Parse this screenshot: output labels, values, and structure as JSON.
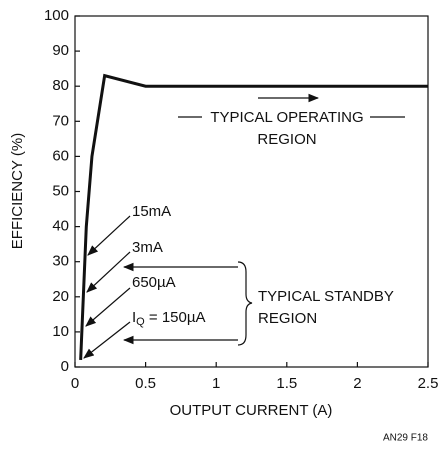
{
  "chart_data": {
    "type": "line",
    "ylabel": "EFFICIENCY (%)",
    "xlabel": "OUTPUT CURRENT (A)",
    "figure_id": "AN29 F18",
    "xlim": [
      0,
      2.5
    ],
    "xticks": [
      0,
      0.5,
      1,
      1.5,
      2,
      2.5
    ],
    "ylim": [
      0,
      100
    ],
    "yticks": [
      0,
      10,
      20,
      30,
      40,
      50,
      60,
      70,
      80,
      90,
      100
    ],
    "grid": false,
    "series": [
      {
        "color": "#111111",
        "x": [
          0.04,
          0.08,
          0.12,
          0.21,
          0.5,
          2.5
        ],
        "values": [
          2,
          40,
          60,
          83,
          80,
          80
        ]
      }
    ],
    "annotations": {
      "operating": [
        "TYPICAL OPERATING",
        "REGION"
      ],
      "standby": [
        "TYPICAL STANDBY",
        "REGION"
      ],
      "currents": [
        "15mA",
        "3mA",
        "650µA"
      ],
      "iq": {
        "symbol": "I",
        "subscript": "Q",
        "rest": " = 150µA"
      }
    }
  }
}
